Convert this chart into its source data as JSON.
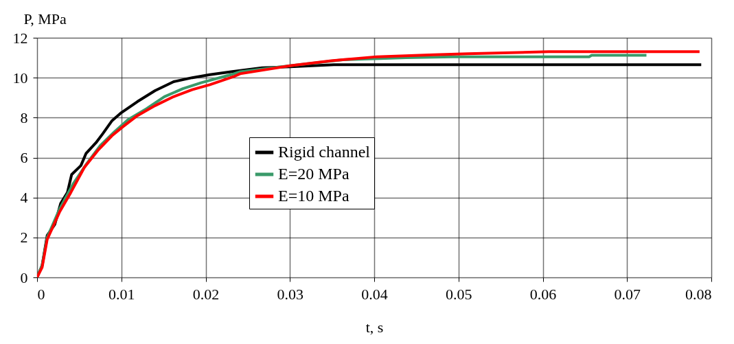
{
  "chart_data": {
    "type": "line",
    "xlabel": "t, s",
    "ylabel": "P, MPa",
    "xlim": [
      0,
      0.08
    ],
    "xticks": [
      0,
      0.01,
      0.02,
      0.03,
      0.04,
      0.05,
      0.06,
      0.07,
      0.08
    ],
    "ylim": [
      0,
      12
    ],
    "yticks": [
      0,
      2,
      4,
      6,
      8,
      10,
      12
    ],
    "grid": true,
    "legend": "center",
    "marker": "none",
    "line_style": "solid",
    "series": [
      {
        "name": "Rigid channel",
        "color": "#000000",
        "x": [
          0,
          0.0006,
          0.0012,
          0.0021,
          0.0028,
          0.0036,
          0.0041,
          0.0052,
          0.0058,
          0.007,
          0.0078,
          0.0089,
          0.01,
          0.0119,
          0.014,
          0.0162,
          0.0184,
          0.0205,
          0.023,
          0.0267,
          0.03,
          0.0352,
          0.0788
        ],
        "values": [
          0,
          0.6,
          2.1,
          2.65,
          3.7,
          4.25,
          5.15,
          5.6,
          6.2,
          6.75,
          7.2,
          7.85,
          8.25,
          8.8,
          9.35,
          9.8,
          10.0,
          10.15,
          10.3,
          10.5,
          10.55,
          10.65,
          10.65
        ]
      },
      {
        "name": "E=20 MPa",
        "color": "#3a9a6a",
        "x": [
          0,
          0.0006,
          0.0012,
          0.0027,
          0.0043,
          0.0059,
          0.0075,
          0.0092,
          0.0108,
          0.013,
          0.0151,
          0.0173,
          0.0195,
          0.023,
          0.0241,
          0.03,
          0.0363,
          0.0438,
          0.0493,
          0.0655,
          0.0658,
          0.0723
        ],
        "values": [
          0,
          0.6,
          2.0,
          3.45,
          4.7,
          5.7,
          6.6,
          7.3,
          7.9,
          8.45,
          9.05,
          9.45,
          9.75,
          10.15,
          10.3,
          10.6,
          10.9,
          11.0,
          11.05,
          11.05,
          11.12,
          11.12
        ]
      },
      {
        "name": "E=10 MPa",
        "color": "#ff0000",
        "x": [
          0,
          0.0006,
          0.0012,
          0.0027,
          0.004,
          0.0056,
          0.0073,
          0.0089,
          0.0102,
          0.0119,
          0.014,
          0.0162,
          0.0184,
          0.0205,
          0.0233,
          0.0241,
          0.03,
          0.0349,
          0.0403,
          0.0471,
          0.0511,
          0.0607,
          0.0786
        ],
        "values": [
          0,
          0.5,
          1.9,
          3.3,
          4.25,
          5.5,
          6.4,
          7.1,
          7.55,
          8.1,
          8.6,
          9.05,
          9.4,
          9.65,
          10.05,
          10.2,
          10.6,
          10.85,
          11.05,
          11.15,
          11.2,
          11.3,
          11.3
        ]
      }
    ]
  }
}
